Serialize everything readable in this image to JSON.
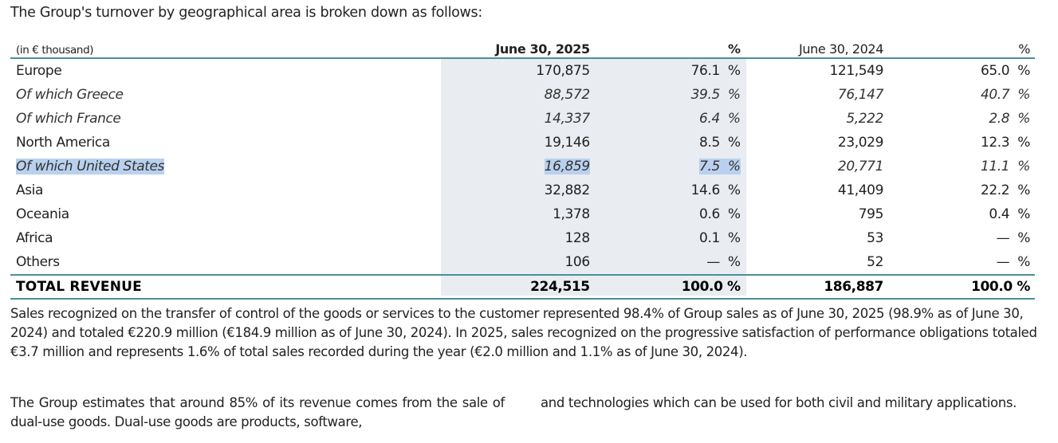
{
  "intro": "The Group's turnover by geographical area is broken down as follows:",
  "table": {
    "headers": {
      "label": "(in € thousand)",
      "col_2025": "June 30, 2025",
      "pct_2025": "%",
      "col_2024": "June 30, 2024",
      "pct_2024": "%"
    },
    "rows": [
      {
        "label": "Europe",
        "v2025": "170,875",
        "p2025": "76.1",
        "v2024": "121,549",
        "p2024": "65.0",
        "sub": false
      },
      {
        "label": "Of which Greece",
        "v2025": "88,572",
        "p2025": "39.5",
        "v2024": "76,147",
        "p2024": "40.7",
        "sub": true
      },
      {
        "label": "Of which France",
        "v2025": "14,337",
        "p2025": "6.4",
        "v2024": "5,222",
        "p2024": "2.8",
        "sub": true
      },
      {
        "label": "North America",
        "v2025": "19,146",
        "p2025": "8.5",
        "v2024": "23,029",
        "p2024": "12.3",
        "sub": false
      },
      {
        "label": "Of which United States",
        "v2025": "16,859",
        "p2025": "7.5",
        "v2024": "20,771",
        "p2024": "11.1",
        "sub": true,
        "selected": true
      },
      {
        "label": "Asia",
        "v2025": "32,882",
        "p2025": "14.6",
        "v2024": "41,409",
        "p2024": "22.2",
        "sub": false
      },
      {
        "label": "Oceania",
        "v2025": "1,378",
        "p2025": "0.6",
        "v2024": "795",
        "p2024": "0.4",
        "sub": false
      },
      {
        "label": "Africa",
        "v2025": "128",
        "p2025": "0.1",
        "v2024": "53",
        "p2024": "—",
        "sub": false
      },
      {
        "label": "Others",
        "v2025": "106",
        "p2025": "—",
        "v2024": "52",
        "p2024": "—",
        "sub": false
      }
    ],
    "total": {
      "label": "TOTAL REVENUE",
      "v2025": "224,515",
      "p2025": "100.0 %",
      "v2024": "186,887",
      "p2024": "100.0 %"
    },
    "pct_symbol": "%"
  },
  "paragraphs": {
    "p1": "Sales recognized on the transfer of control of the goods or services to the customer represented 98.4% of Group sales as of June 30, 2025 (98.9% as of June 30, 2024) and totaled €220.9 million (€184.9 million as of June 30, 2024). In 2025, sales recognized on the progressive satisfaction of performance obligations totaled €3.7 million and represents 1.6% of total sales recorded during the year (€2.0 million and 1.1% as of June 30, 2024).",
    "col_left": "The Group estimates that around 85% of its revenue comes from the sale of dual-use goods. Dual-use goods are products, software,",
    "col_right": "and technologies which can be used for both civil and military applications."
  },
  "colors": {
    "rule": "#4a8f9a",
    "shade": "#e9ecf0",
    "selection": "#b9d1ef"
  }
}
